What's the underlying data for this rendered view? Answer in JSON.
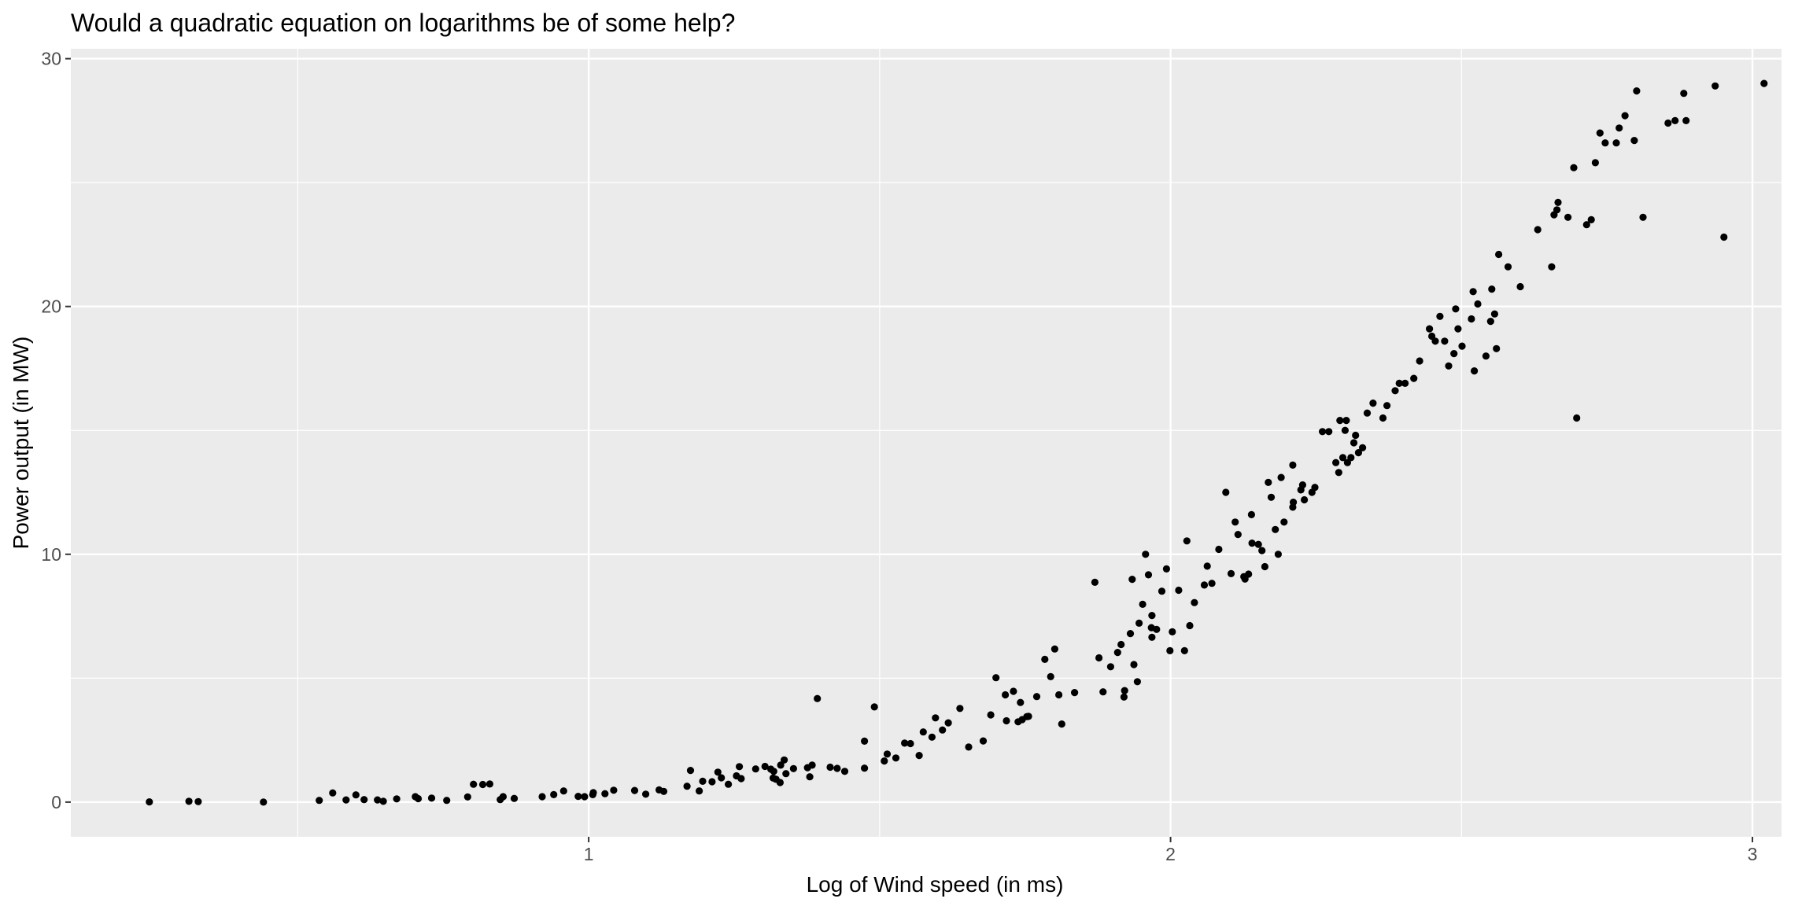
{
  "chart_data": {
    "type": "scatter",
    "title": "Would a quadratic equation on logarithms be of some help?",
    "xlabel": "Log of Wind speed (in ms)",
    "ylabel": "Power output (in MW)",
    "xlim": [
      0.11,
      3.05
    ],
    "ylim": [
      -1.4,
      30.4
    ],
    "x_ticks": [
      1,
      2,
      3
    ],
    "y_ticks": [
      0,
      10,
      20,
      30
    ],
    "x_minor": [
      0.5,
      1.5,
      2.5
    ],
    "y_minor": [
      5,
      15,
      25
    ],
    "grid": true,
    "legend": "none",
    "colors": {
      "panel": "#ebebeb",
      "grid": "#ffffff",
      "point": "#000000",
      "tick": "#4d4d4d"
    },
    "points": [
      [
        0.245,
        0.01
      ],
      [
        0.313,
        0.03
      ],
      [
        0.329,
        0.02
      ],
      [
        0.441,
        0.0
      ],
      [
        0.537,
        0.07
      ],
      [
        0.56,
        0.37
      ],
      [
        0.583,
        0.09
      ],
      [
        0.6,
        0.29
      ],
      [
        0.614,
        0.1
      ],
      [
        0.637,
        0.09
      ],
      [
        0.647,
        0.03
      ],
      [
        0.67,
        0.13
      ],
      [
        0.702,
        0.22
      ],
      [
        0.707,
        0.14
      ],
      [
        0.73,
        0.16
      ],
      [
        0.756,
        0.07
      ],
      [
        0.792,
        0.21
      ],
      [
        0.802,
        0.72
      ],
      [
        0.818,
        0.71
      ],
      [
        0.83,
        0.73
      ],
      [
        0.848,
        0.1
      ],
      [
        0.853,
        0.22
      ],
      [
        0.872,
        0.15
      ],
      [
        0.92,
        0.22
      ],
      [
        0.94,
        0.3
      ],
      [
        0.957,
        0.45
      ],
      [
        0.982,
        0.23
      ],
      [
        0.993,
        0.22
      ],
      [
        1.007,
        0.3
      ],
      [
        1.008,
        0.38
      ],
      [
        1.028,
        0.34
      ],
      [
        1.043,
        0.48
      ],
      [
        1.079,
        0.47
      ],
      [
        1.098,
        0.32
      ],
      [
        1.121,
        0.49
      ],
      [
        1.129,
        0.43
      ],
      [
        1.169,
        0.64
      ],
      [
        1.175,
        1.28
      ],
      [
        1.19,
        0.45
      ],
      [
        1.196,
        0.84
      ],
      [
        1.212,
        0.82
      ],
      [
        1.222,
        1.21
      ],
      [
        1.228,
        0.98
      ],
      [
        1.24,
        0.72
      ],
      [
        1.254,
        1.06
      ],
      [
        1.259,
        1.43
      ],
      [
        1.262,
        0.95
      ],
      [
        1.287,
        1.34
      ],
      [
        1.303,
        1.44
      ],
      [
        1.313,
        1.33
      ],
      [
        1.318,
        1.24
      ],
      [
        1.322,
        0.92
      ],
      [
        1.33,
        1.49
      ],
      [
        1.339,
        1.15
      ],
      [
        1.352,
        1.35
      ],
      [
        1.317,
        0.97
      ],
      [
        1.329,
        0.79
      ],
      [
        1.336,
        1.7
      ],
      [
        1.376,
        1.39
      ],
      [
        1.38,
        1.02
      ],
      [
        1.384,
        1.49
      ],
      [
        1.393,
        4.18
      ],
      [
        1.415,
        1.41
      ],
      [
        1.427,
        1.36
      ],
      [
        1.44,
        1.24
      ],
      [
        1.474,
        2.46
      ],
      [
        1.474,
        1.37
      ],
      [
        1.491,
        3.84
      ],
      [
        1.508,
        1.66
      ],
      [
        1.513,
        1.94
      ],
      [
        1.528,
        1.78
      ],
      [
        1.543,
        2.38
      ],
      [
        1.553,
        2.36
      ],
      [
        1.568,
        1.88
      ],
      [
        1.575,
        2.83
      ],
      [
        1.59,
        2.62
      ],
      [
        1.596,
        3.4
      ],
      [
        1.608,
        2.91
      ],
      [
        1.618,
        3.2
      ],
      [
        1.638,
        3.78
      ],
      [
        1.653,
        2.22
      ],
      [
        1.678,
        2.47
      ],
      [
        1.691,
        3.52
      ],
      [
        1.7,
        5.02
      ],
      [
        1.716,
        4.33
      ],
      [
        1.718,
        3.28
      ],
      [
        1.73,
        4.47
      ],
      [
        1.738,
        3.24
      ],
      [
        1.742,
        4.02
      ],
      [
        1.756,
        3.46
      ],
      [
        1.745,
        3.33
      ],
      [
        1.753,
        3.45
      ],
      [
        1.77,
        4.26
      ],
      [
        1.784,
        5.76
      ],
      [
        1.794,
        5.06
      ],
      [
        1.801,
        6.18
      ],
      [
        1.808,
        4.33
      ],
      [
        1.813,
        3.15
      ],
      [
        1.835,
        4.42
      ],
      [
        1.87,
        8.87
      ],
      [
        1.877,
        5.82
      ],
      [
        1.884,
        4.45
      ],
      [
        1.897,
        5.46
      ],
      [
        1.909,
        6.04
      ],
      [
        1.915,
        6.36
      ],
      [
        1.92,
        4.24
      ],
      [
        1.921,
        4.5
      ],
      [
        1.937,
        5.55
      ],
      [
        1.943,
        4.86
      ],
      [
        1.931,
        6.8
      ],
      [
        1.934,
        8.99
      ],
      [
        1.946,
        7.22
      ],
      [
        1.952,
        7.98
      ],
      [
        1.957,
        10.0
      ],
      [
        1.962,
        9.17
      ],
      [
        1.967,
        7.04
      ],
      [
        1.968,
        6.65
      ],
      [
        1.968,
        7.53
      ],
      [
        1.976,
        6.97
      ],
      [
        1.985,
        8.51
      ],
      [
        1.993,
        9.41
      ],
      [
        1.999,
        6.11
      ],
      [
        2.003,
        6.87
      ],
      [
        2.014,
        8.55
      ],
      [
        2.024,
        6.11
      ],
      [
        2.028,
        10.54
      ],
      [
        2.033,
        7.12
      ],
      [
        2.041,
        8.05
      ],
      [
        2.058,
        8.76
      ],
      [
        2.063,
        9.52
      ],
      [
        2.071,
        8.83
      ],
      [
        2.083,
        10.2
      ],
      [
        2.095,
        12.5
      ],
      [
        2.104,
        9.22
      ],
      [
        2.111,
        11.3
      ],
      [
        2.116,
        10.8
      ],
      [
        2.126,
        9.1
      ],
      [
        2.128,
        9.0
      ],
      [
        2.134,
        9.2
      ],
      [
        2.139,
        11.6
      ],
      [
        2.14,
        10.45
      ],
      [
        2.151,
        10.4
      ],
      [
        2.157,
        10.15
      ],
      [
        2.162,
        9.5
      ],
      [
        2.168,
        12.9
      ],
      [
        2.173,
        12.3
      ],
      [
        2.18,
        11.0
      ],
      [
        2.185,
        10.0
      ],
      [
        2.19,
        13.1
      ],
      [
        2.195,
        11.3
      ],
      [
        2.21,
        11.9
      ],
      [
        2.21,
        13.6
      ],
      [
        2.211,
        12.1
      ],
      [
        2.224,
        12.6
      ],
      [
        2.227,
        12.8
      ],
      [
        2.23,
        12.2
      ],
      [
        2.243,
        12.5
      ],
      [
        2.248,
        12.7
      ],
      [
        2.261,
        14.95
      ],
      [
        2.272,
        14.95
      ],
      [
        2.284,
        13.7
      ],
      [
        2.289,
        13.3
      ],
      [
        2.291,
        15.4
      ],
      [
        2.296,
        13.9
      ],
      [
        2.3,
        15.0
      ],
      [
        2.304,
        13.7
      ],
      [
        2.302,
        15.4
      ],
      [
        2.31,
        13.9
      ],
      [
        2.315,
        14.5
      ],
      [
        2.318,
        14.8
      ],
      [
        2.323,
        14.1
      ],
      [
        2.33,
        14.3
      ],
      [
        2.338,
        15.7
      ],
      [
        2.348,
        16.1
      ],
      [
        2.365,
        15.5
      ],
      [
        2.372,
        16.0
      ],
      [
        2.386,
        16.6
      ],
      [
        2.393,
        16.9
      ],
      [
        2.403,
        16.9
      ],
      [
        2.418,
        17.1
      ],
      [
        2.428,
        17.8
      ],
      [
        2.445,
        19.1
      ],
      [
        2.449,
        18.8
      ],
      [
        2.455,
        18.6
      ],
      [
        2.463,
        19.6
      ],
      [
        2.471,
        18.6
      ],
      [
        2.478,
        17.6
      ],
      [
        2.487,
        18.1
      ],
      [
        2.49,
        19.9
      ],
      [
        2.494,
        19.1
      ],
      [
        2.501,
        18.4
      ],
      [
        2.517,
        19.5
      ],
      [
        2.52,
        20.6
      ],
      [
        2.522,
        17.4
      ],
      [
        2.528,
        20.1
      ],
      [
        2.542,
        18.0
      ],
      [
        2.55,
        19.4
      ],
      [
        2.557,
        19.7
      ],
      [
        2.552,
        20.7
      ],
      [
        2.56,
        18.3
      ],
      [
        2.564,
        22.1
      ],
      [
        2.58,
        21.6
      ],
      [
        2.601,
        20.8
      ],
      [
        2.631,
        23.1
      ],
      [
        2.655,
        21.6
      ],
      [
        2.659,
        23.7
      ],
      [
        2.664,
        23.9
      ],
      [
        2.666,
        24.2
      ],
      [
        2.683,
        23.6
      ],
      [
        2.693,
        25.6
      ],
      [
        2.698,
        15.5
      ],
      [
        2.715,
        23.3
      ],
      [
        2.723,
        23.5
      ],
      [
        2.73,
        25.8
      ],
      [
        2.738,
        27.0
      ],
      [
        2.747,
        26.6
      ],
      [
        2.766,
        26.6
      ],
      [
        2.771,
        27.2
      ],
      [
        2.781,
        27.7
      ],
      [
        2.797,
        26.7
      ],
      [
        2.801,
        28.7
      ],
      [
        2.812,
        23.6
      ],
      [
        2.855,
        27.4
      ],
      [
        2.867,
        27.5
      ],
      [
        2.882,
        28.6
      ],
      [
        2.886,
        27.5
      ],
      [
        2.936,
        28.9
      ],
      [
        2.951,
        22.8
      ],
      [
        3.02,
        29.0
      ]
    ]
  }
}
